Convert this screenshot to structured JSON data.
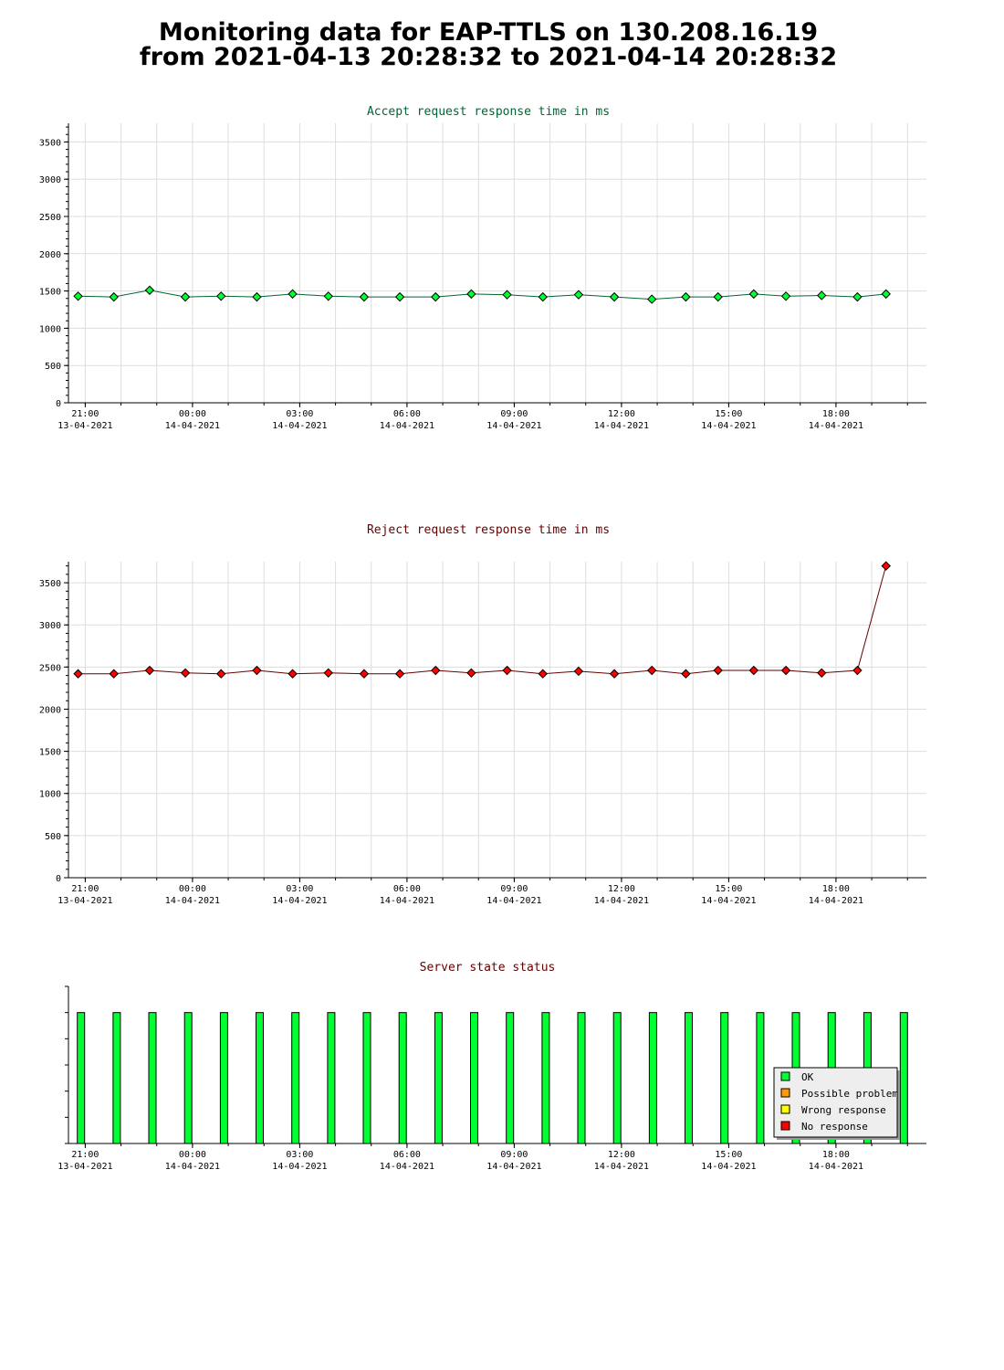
{
  "page": {
    "title_line1": "Monitoring data for EAP-TTLS on 130.208.16.19",
    "title_line2": "from 2021-04-13 20:28:32 to 2021-04-14 20:28:32"
  },
  "chart_data": [
    {
      "type": "line",
      "title": "Accept request response time in ms",
      "title_color": "#006633",
      "marker_color": "#00ff33",
      "line_color": "#006633",
      "ylim": [
        0,
        3750
      ],
      "yticks": [
        0,
        500,
        1000,
        1500,
        2000,
        2500,
        3000,
        3500
      ],
      "xlim": [
        -0.47,
        23.53
      ],
      "xticks": [
        {
          "x": 0,
          "time": "21:00",
          "date": "13-04-2021"
        },
        {
          "x": 3,
          "time": "00:00",
          "date": "14-04-2021"
        },
        {
          "x": 6,
          "time": "03:00",
          "date": "14-04-2021"
        },
        {
          "x": 9,
          "time": "06:00",
          "date": "14-04-2021"
        },
        {
          "x": 12,
          "time": "09:00",
          "date": "14-04-2021"
        },
        {
          "x": 15,
          "time": "12:00",
          "date": "14-04-2021"
        },
        {
          "x": 18,
          "time": "15:00",
          "date": "14-04-2021"
        },
        {
          "x": 21,
          "time": "18:00",
          "date": "14-04-2021"
        }
      ],
      "grid": true,
      "x": [
        -0.2,
        0.8,
        1.8,
        2.8,
        3.8,
        4.8,
        5.8,
        6.8,
        7.8,
        8.8,
        9.8,
        10.8,
        11.8,
        12.8,
        13.8,
        14.8,
        15.85,
        16.8,
        17.7,
        18.7,
        19.6,
        20.6,
        21.6,
        22.4
      ],
      "values": [
        1430,
        1420,
        1510,
        1420,
        1430,
        1420,
        1460,
        1430,
        1420,
        1420,
        1420,
        1460,
        1450,
        1420,
        1450,
        1420,
        1390,
        1420,
        1420,
        1460,
        1430,
        1440,
        1420,
        1460
      ]
    },
    {
      "type": "line",
      "title": "Reject request response time in ms",
      "title_color": "#660000",
      "marker_color": "#ff0000",
      "line_color": "#660000",
      "ylim": [
        0,
        3750
      ],
      "yticks": [
        0,
        500,
        1000,
        1500,
        2000,
        2500,
        3000,
        3500
      ],
      "xlim": [
        -0.47,
        23.53
      ],
      "xticks": [
        {
          "x": 0,
          "time": "21:00",
          "date": "13-04-2021"
        },
        {
          "x": 3,
          "time": "00:00",
          "date": "14-04-2021"
        },
        {
          "x": 6,
          "time": "03:00",
          "date": "14-04-2021"
        },
        {
          "x": 9,
          "time": "06:00",
          "date": "14-04-2021"
        },
        {
          "x": 12,
          "time": "09:00",
          "date": "14-04-2021"
        },
        {
          "x": 15,
          "time": "12:00",
          "date": "14-04-2021"
        },
        {
          "x": 18,
          "time": "15:00",
          "date": "14-04-2021"
        },
        {
          "x": 21,
          "time": "18:00",
          "date": "14-04-2021"
        }
      ],
      "grid": true,
      "x": [
        -0.2,
        0.8,
        1.8,
        2.8,
        3.8,
        4.8,
        5.8,
        6.8,
        7.8,
        8.8,
        9.8,
        10.8,
        11.8,
        12.8,
        13.8,
        14.8,
        15.85,
        16.8,
        17.7,
        18.7,
        19.6,
        20.6,
        21.6,
        22.4
      ],
      "values": [
        2420,
        2420,
        2460,
        2430,
        2420,
        2460,
        2420,
        2430,
        2420,
        2420,
        2460,
        2430,
        2460,
        2420,
        2450,
        2420,
        2460,
        2420,
        2460,
        2460,
        2460,
        2430,
        2460,
        3700
      ]
    },
    {
      "type": "bar",
      "title": "Server state status",
      "title_color": "#660000",
      "xlim": [
        -0.47,
        23.53
      ],
      "xticks": [
        {
          "x": 0,
          "time": "21:00",
          "date": "13-04-2021"
        },
        {
          "x": 3,
          "time": "00:00",
          "date": "14-04-2021"
        },
        {
          "x": 6,
          "time": "03:00",
          "date": "14-04-2021"
        },
        {
          "x": 9,
          "time": "06:00",
          "date": "14-04-2021"
        },
        {
          "x": 12,
          "time": "09:00",
          "date": "14-04-2021"
        },
        {
          "x": 15,
          "time": "12:00",
          "date": "14-04-2021"
        },
        {
          "x": 18,
          "time": "15:00",
          "date": "14-04-2021"
        },
        {
          "x": 21,
          "time": "18:00",
          "date": "14-04-2021"
        }
      ],
      "x": [
        -0.12,
        0.88,
        1.88,
        2.88,
        3.88,
        4.88,
        5.88,
        6.88,
        7.88,
        8.88,
        9.88,
        10.88,
        11.88,
        12.88,
        13.88,
        14.88,
        15.88,
        16.88,
        17.88,
        18.88,
        19.88,
        20.88,
        21.88,
        22.9
      ],
      "states": [
        "OK",
        "OK",
        "OK",
        "OK",
        "OK",
        "OK",
        "OK",
        "OK",
        "OK",
        "OK",
        "OK",
        "OK",
        "OK",
        "OK",
        "OK",
        "OK",
        "OK",
        "OK",
        "OK",
        "OK",
        "OK",
        "OK",
        "OK",
        "OK"
      ],
      "legend": [
        {
          "label": "OK",
          "color": "#00ff33"
        },
        {
          "label": "Possible problem",
          "color": "#ff9900"
        },
        {
          "label": "Wrong response",
          "color": "#ffff00"
        },
        {
          "label": "No response",
          "color": "#ff0000"
        }
      ],
      "legend_position": "bottom-right"
    }
  ]
}
